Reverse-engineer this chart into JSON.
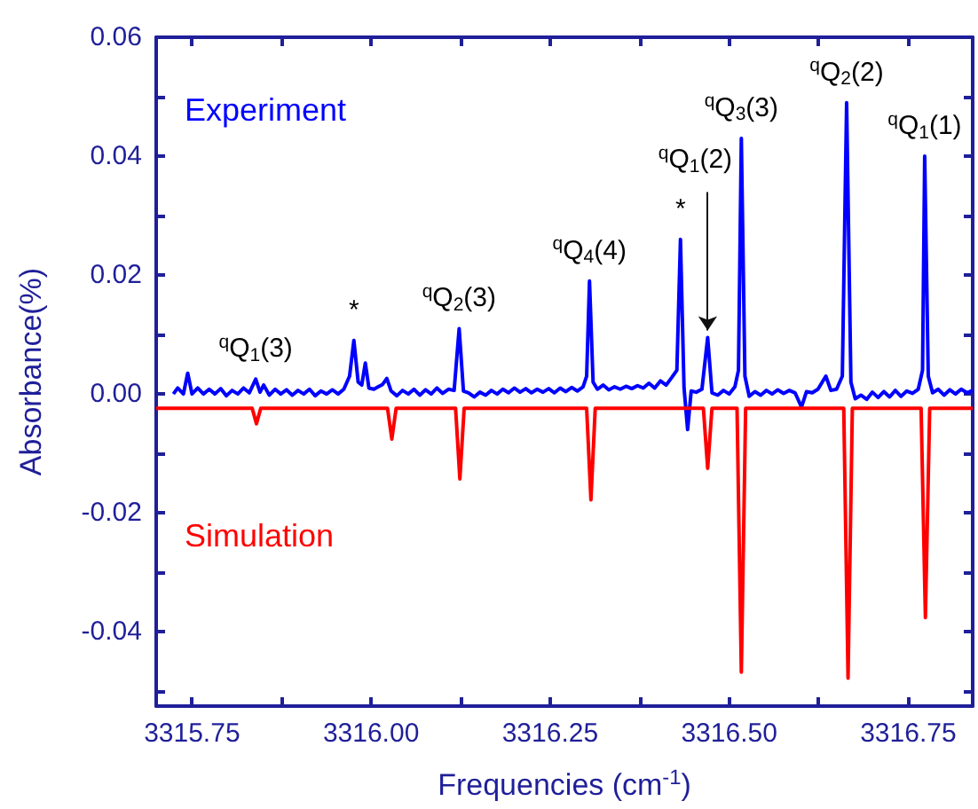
{
  "chart_data": {
    "type": "line",
    "xlabel": "Frequencies (cm$^{-1}$)",
    "ylabel": "Absorbance(%)",
    "xlim": [
      3315.7,
      3316.84
    ],
    "xticks": [
      3315.75,
      {
        "value": 3315.875,
        "label": null
      },
      {
        "value": 3316.0,
        "label": "3316.00"
      },
      {
        "value": 3316.125,
        "label": null
      },
      3316.25,
      {
        "value": 3316.375,
        "label": null
      },
      {
        "value": 3316.5,
        "label": "3316.50"
      },
      {
        "value": 3316.625,
        "label": null
      },
      3316.75
    ],
    "ylim": [
      -0.0525,
      0.06
    ],
    "yticks": [
      {
        "value": -0.05,
        "label": null
      },
      -0.04,
      {
        "value": -0.03,
        "label": null
      },
      -0.02,
      {
        "value": -0.01,
        "label": null
      },
      {
        "value": 0,
        "label": "0.00"
      },
      {
        "value": 0.01,
        "label": null
      },
      0.02,
      {
        "value": 0.03,
        "label": null
      },
      0.04,
      {
        "value": 0.05,
        "label": null
      },
      0.06
    ],
    "grid": false,
    "legend": false,
    "marker": "none",
    "line_style": "solid",
    "series": [
      {
        "name": "Experiment",
        "color": "#0000ff",
        "x": [
          3315.724,
          3315.73,
          3315.738,
          3315.744,
          3315.75,
          3315.758,
          3315.766,
          3315.774,
          3315.782,
          3315.79,
          3315.798,
          3315.806,
          3315.814,
          3315.822,
          3315.83,
          3315.839,
          3315.845,
          3315.85,
          3315.858,
          3315.866,
          3315.874,
          3315.882,
          3315.89,
          3315.898,
          3315.906,
          3315.914,
          3315.922,
          3315.93,
          3315.938,
          3315.946,
          3315.954,
          3315.962,
          3315.97,
          3315.976,
          3315.982,
          3315.987,
          3315.992,
          3315.997,
          3316.004,
          3316.01,
          3316.016,
          3316.022,
          3316.028,
          3316.036,
          3316.044,
          3316.052,
          3316.06,
          3316.068,
          3316.076,
          3316.084,
          3316.092,
          3316.1,
          3316.108,
          3316.116,
          3316.123,
          3316.129,
          3316.136,
          3316.144,
          3316.152,
          3316.16,
          3316.168,
          3316.176,
          3316.184,
          3316.192,
          3316.2,
          3316.208,
          3316.216,
          3316.224,
          3316.232,
          3316.24,
          3316.248,
          3316.256,
          3316.264,
          3316.272,
          3316.28,
          3316.288,
          3316.296,
          3316.301,
          3316.305,
          3316.31,
          3316.316,
          3316.324,
          3316.332,
          3316.34,
          3316.348,
          3316.356,
          3316.364,
          3316.372,
          3316.38,
          3316.388,
          3316.396,
          3316.404,
          3316.412,
          3316.42,
          3316.427,
          3316.432,
          3316.437,
          3316.442,
          3316.447,
          3316.454,
          3316.462,
          3316.47,
          3316.476,
          3316.484,
          3316.492,
          3316.5,
          3316.508,
          3316.513,
          3316.517,
          3316.522,
          3316.528,
          3316.536,
          3316.544,
          3316.552,
          3316.56,
          3316.568,
          3316.576,
          3316.584,
          3316.592,
          3316.601,
          3316.608,
          3316.616,
          3316.624,
          3316.635,
          3316.642,
          3316.65,
          3316.658,
          3316.664,
          3316.67,
          3316.676,
          3316.684,
          3316.692,
          3316.7,
          3316.708,
          3316.716,
          3316.724,
          3316.732,
          3316.74,
          3316.748,
          3316.756,
          3316.764,
          3316.77,
          3316.773,
          3316.778,
          3316.784,
          3316.792,
          3316.8,
          3316.808,
          3316.816,
          3316.824,
          3316.832,
          3316.84
        ],
        "values": [
          0.0,
          0.001,
          0.0,
          0.0035,
          0.0,
          0.001,
          0.0,
          0.0008,
          0.0,
          0.0009,
          -0.0003,
          0.0006,
          0.0,
          0.001,
          0.0002,
          0.0025,
          0.0003,
          0.0015,
          -0.0002,
          0.0008,
          0.0,
          0.0007,
          -0.0002,
          0.0006,
          0.0,
          0.0008,
          -0.0003,
          0.0005,
          0.0,
          0.0007,
          0.0,
          0.0008,
          0.003,
          0.009,
          0.002,
          0.0015,
          0.0052,
          0.001,
          0.0008,
          0.0012,
          0.0016,
          0.0026,
          0.0005,
          -0.0003,
          0.0006,
          0.0,
          0.0008,
          -0.0002,
          0.0007,
          0.0,
          0.001,
          0.0001,
          0.0008,
          0.0006,
          0.011,
          0.0005,
          0.0002,
          -0.0005,
          0.0003,
          -0.0002,
          0.0006,
          0.0,
          0.0008,
          0.0002,
          0.001,
          0.0003,
          0.0009,
          0.0002,
          0.0008,
          0.0003,
          0.0009,
          0.0002,
          0.001,
          0.0004,
          0.0011,
          0.0005,
          0.0012,
          0.003,
          0.019,
          0.002,
          0.0008,
          0.0015,
          0.0007,
          0.0012,
          0.0008,
          0.0013,
          0.0009,
          0.0014,
          0.001,
          0.0018,
          0.001,
          0.0022,
          0.0015,
          0.0028,
          0.004,
          0.026,
          0.001,
          -0.006,
          0.0005,
          0.0003,
          0.0008,
          0.0095,
          0.0002,
          -0.0002,
          0.0006,
          0.0,
          0.0012,
          0.004,
          0.043,
          0.003,
          -0.0004,
          0.0004,
          -0.0002,
          0.0006,
          0.0,
          0.0007,
          0.0001,
          0.0006,
          0.0002,
          -0.0022,
          0.0004,
          0.0002,
          0.0008,
          0.003,
          0.0006,
          0.0008,
          0.003,
          0.049,
          0.002,
          -0.0008,
          -0.0002,
          -0.0009,
          0.0003,
          -0.0006,
          0.0004,
          -0.0005,
          0.0006,
          -0.0004,
          0.0005,
          0.0001,
          0.0008,
          0.004,
          0.04,
          0.003,
          0.0002,
          0.0008,
          -0.0002,
          0.0007,
          0.0,
          0.0008,
          0.0002,
          0.0006
        ]
      },
      {
        "name": "Simulation",
        "color": "#ff0000",
        "x": [
          3315.7,
          3315.834,
          3315.84,
          3315.846,
          3316.023,
          3316.029,
          3316.035,
          3316.118,
          3316.124,
          3316.13,
          3316.301,
          3316.307,
          3316.313,
          3316.464,
          3316.47,
          3316.476,
          3316.511,
          3316.517,
          3316.523,
          3316.66,
          3316.666,
          3316.672,
          3316.768,
          3316.774,
          3316.78,
          3316.84
        ],
        "values": [
          -0.0024,
          -0.0024,
          -0.005,
          -0.0024,
          -0.0024,
          -0.0076,
          -0.0024,
          -0.0024,
          -0.0143,
          -0.0024,
          -0.0024,
          -0.0178,
          -0.0024,
          -0.0024,
          -0.0125,
          -0.0024,
          -0.0024,
          -0.0468,
          -0.0024,
          -0.0024,
          -0.0478,
          -0.0024,
          -0.0024,
          -0.0376,
          -0.0024,
          -0.0024
        ]
      }
    ],
    "annotations": [
      {
        "text": "$^{q}$Q$_{1}$(3)",
        "x": 3315.839,
        "y": 0.0025
      },
      {
        "text": "*",
        "x": 3315.976,
        "y": 0.009
      },
      {
        "text": "$^{q}$Q$_{2}$(3)",
        "x": 3316.123,
        "y": 0.011
      },
      {
        "text": "$^{q}$Q$_{4}$(4)",
        "x": 3316.305,
        "y": 0.019
      },
      {
        "text": "*",
        "x": 3316.432,
        "y": 0.026
      },
      {
        "text": "$^{q}$Q$_{1}$(2)",
        "x": 3316.47,
        "y": 0.0095
      },
      {
        "text": "$^{q}$Q$_{3}$(3)",
        "x": 3316.517,
        "y": 0.043
      },
      {
        "text": "$^{q}$Q$_{2}$(2)",
        "x": 3316.664,
        "y": 0.049
      },
      {
        "text": "$^{q}$Q$_{1}$(1)",
        "x": 3316.773,
        "y": 0.04
      }
    ]
  }
}
